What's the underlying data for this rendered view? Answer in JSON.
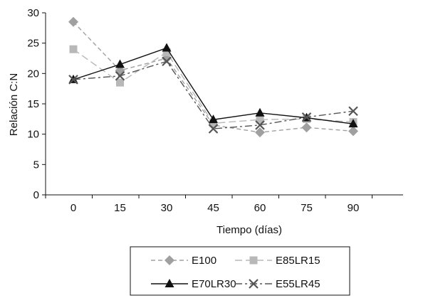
{
  "chart_data": {
    "type": "line",
    "xlabel": "Tiempo (días)",
    "ylabel": "Relación C:N",
    "x": [
      0,
      15,
      30,
      45,
      60,
      75,
      90
    ],
    "ylim": [
      0,
      30
    ],
    "yticks": [
      0,
      5,
      10,
      15,
      20,
      25,
      30
    ],
    "grid": false,
    "legend_position": "bottom",
    "series": [
      {
        "name": "E100",
        "values": [
          28.5,
          20.5,
          22.5,
          11.5,
          10.3,
          11.1,
          10.5
        ],
        "color": "#a0a0a0",
        "marker": "diamond",
        "dash": "6,4"
      },
      {
        "name": "E85LR15",
        "values": [
          24.0,
          18.5,
          23.5,
          11.8,
          12.4,
          12.5,
          12.0
        ],
        "color": "#b8b8b8",
        "marker": "square",
        "dash": "10,5"
      },
      {
        "name": "E70LR30",
        "values": [
          19.0,
          21.5,
          24.2,
          12.4,
          13.5,
          12.7,
          11.7
        ],
        "color": "#111111",
        "marker": "triangle",
        "dash": ""
      },
      {
        "name": "E55LR45",
        "values": [
          19.0,
          19.6,
          22.0,
          10.9,
          11.5,
          12.8,
          13.8
        ],
        "color": "#555555",
        "marker": "x",
        "dash": "10,4,3,4"
      }
    ]
  }
}
